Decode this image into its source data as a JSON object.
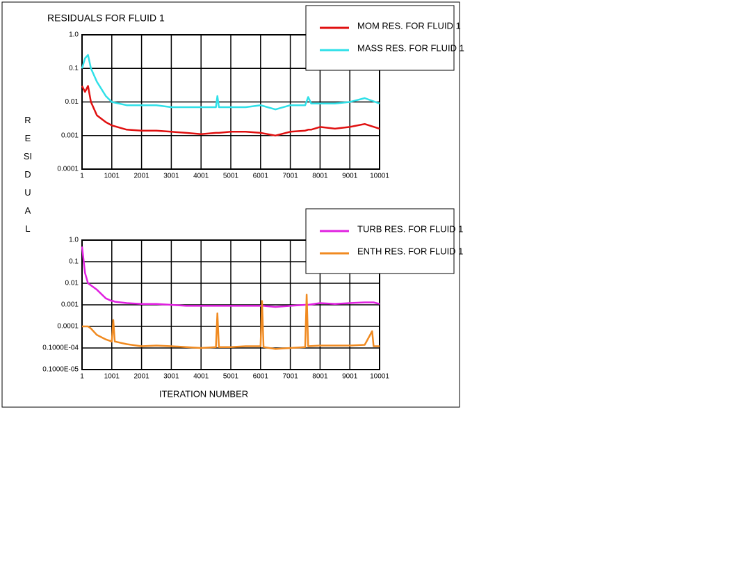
{
  "chart_data": [
    {
      "type": "line",
      "title": "RESIDUALS FOR FLUID  1",
      "ylabel": "RESIDUAL",
      "x": [
        1,
        101,
        201,
        301,
        501,
        801,
        1001,
        1501,
        2001,
        2501,
        3001,
        3501,
        4001,
        4501,
        4551,
        4601,
        5001,
        5501,
        6001,
        6501,
        7001,
        7501,
        7601,
        7701,
        8001,
        8501,
        9001,
        9501,
        10001
      ],
      "series": [
        {
          "name": "MOM RES. FOR FLUID  1",
          "color": "#e01010",
          "values": [
            0.03,
            0.02,
            0.03,
            0.01,
            0.004,
            0.0025,
            0.002,
            0.0015,
            0.0014,
            0.0014,
            0.0013,
            0.0012,
            0.0011,
            0.0012,
            0.0012,
            0.0012,
            0.0013,
            0.0013,
            0.0012,
            0.001,
            0.0013,
            0.0014,
            0.0015,
            0.0015,
            0.0018,
            0.0016,
            0.0018,
            0.0022,
            0.0016
          ]
        },
        {
          "name": "MASS RES. FOR FLUID  1",
          "color": "#30e0e8",
          "values": [
            0.1,
            0.2,
            0.25,
            0.1,
            0.04,
            0.015,
            0.01,
            0.008,
            0.008,
            0.008,
            0.007,
            0.007,
            0.007,
            0.007,
            0.015,
            0.007,
            0.007,
            0.007,
            0.008,
            0.006,
            0.008,
            0.008,
            0.014,
            0.009,
            0.009,
            0.009,
            0.01,
            0.013,
            0.009
          ]
        }
      ],
      "xlim": [
        1,
        10001
      ],
      "xticks": [
        1,
        1001,
        2001,
        3001,
        4001,
        5001,
        6001,
        7001,
        8001,
        9001,
        10001
      ],
      "ylim": [
        0.0001,
        1
      ],
      "yscale": "log",
      "yticks": [
        {
          "value": 1,
          "label": "1.0"
        },
        0.1,
        0.01,
        0.001,
        0.0001
      ],
      "grid": true,
      "legend": "upper right"
    },
    {
      "type": "line",
      "xlabel": "ITERATION NUMBER",
      "x": [
        1,
        101,
        201,
        301,
        501,
        801,
        1001,
        1051,
        1101,
        1501,
        2001,
        2501,
        3001,
        3501,
        4001,
        4501,
        4551,
        4601,
        5001,
        5501,
        6001,
        6051,
        6101,
        6501,
        7001,
        7501,
        7551,
        7601,
        8001,
        8501,
        9001,
        9501,
        9751,
        9801,
        10001
      ],
      "series": [
        {
          "name": "TURB RES. FOR FLUID  1",
          "color": "#e020e0",
          "values": [
            0.5,
            0.03,
            0.01,
            0.008,
            0.005,
            0.002,
            0.0015,
            0.0015,
            0.0014,
            0.0012,
            0.0011,
            0.0011,
            0.001,
            0.0009,
            0.0009,
            0.0009,
            0.0009,
            0.0009,
            0.0009,
            0.0009,
            0.0009,
            0.0009,
            0.0009,
            0.0008,
            0.0009,
            0.001,
            0.001,
            0.001,
            0.0012,
            0.0011,
            0.0012,
            0.0013,
            0.0013,
            0.0013,
            0.0011
          ]
        },
        {
          "name": "ENTH RES. FOR FLUID  1",
          "color": "#f08a20",
          "values": [
            0.0001,
            0.0001,
            0.0001,
            8e-05,
            4e-05,
            2.5e-05,
            2e-05,
            0.0002,
            2e-05,
            1.5e-05,
            1.2e-05,
            1.3e-05,
            1.2e-05,
            1.1e-05,
            1e-05,
            1.1e-05,
            0.0004,
            1.1e-05,
            1.1e-05,
            1.2e-05,
            1.2e-05,
            0.0015,
            1.1e-05,
            9e-06,
            1e-05,
            1.1e-05,
            0.003,
            1.2e-05,
            1.3e-05,
            1.3e-05,
            1.3e-05,
            1.4e-05,
            6e-05,
            1.2e-05,
            1.2e-05
          ]
        }
      ],
      "xlim": [
        1,
        10001
      ],
      "xticks": [
        1,
        1001,
        2001,
        3001,
        4001,
        5001,
        6001,
        7001,
        8001,
        9001,
        10001
      ],
      "ylim": [
        1e-06,
        1
      ],
      "yscale": "log",
      "yticks": [
        {
          "value": 1,
          "label": "1.0"
        },
        0.1,
        0.01,
        0.001,
        0.0001,
        {
          "value": 1e-05,
          "label": "0.1000E-04"
        },
        {
          "value": 1e-06,
          "label": "0.1000E-05"
        }
      ],
      "grid": true,
      "legend": "upper right"
    }
  ]
}
